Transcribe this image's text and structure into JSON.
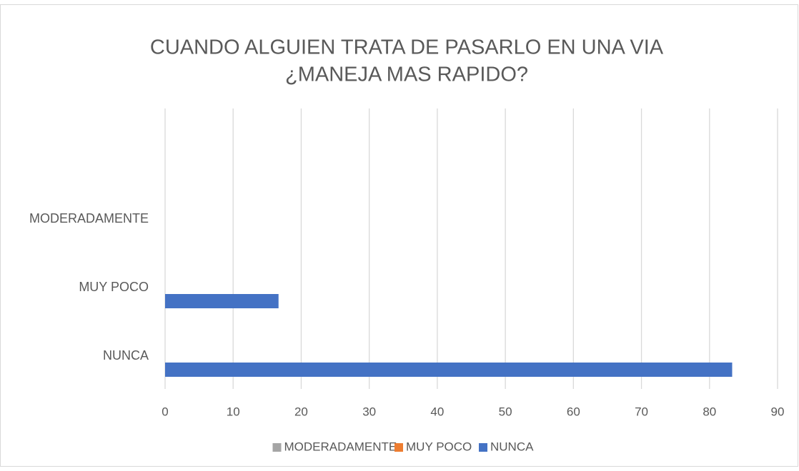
{
  "chart_data": {
    "type": "bar",
    "orientation": "horizontal",
    "title": [
      "CUANDO ALGUIEN TRATA DE PASARLO EN UNA VIA",
      "¿MANEJA MAS RAPIDO?"
    ],
    "categories": [
      "NUNCA",
      "MUY POCO",
      "MODERADAMENTE"
    ],
    "series": [
      {
        "name": "MODERADAMENTE",
        "color": "#a5a5a5",
        "values": [
          0,
          0,
          0
        ]
      },
      {
        "name": "MUY POCO",
        "color": "#ed7d31",
        "values": [
          0,
          0,
          0
        ]
      },
      {
        "name": "NUNCA",
        "color": "#4472c4",
        "values": [
          83.33,
          16.67,
          0
        ]
      }
    ],
    "xlim": [
      0,
      90
    ],
    "xticks": [
      0,
      10,
      20,
      30,
      40,
      50,
      60,
      70,
      80,
      90
    ],
    "grid": true,
    "legend": "bottom"
  }
}
